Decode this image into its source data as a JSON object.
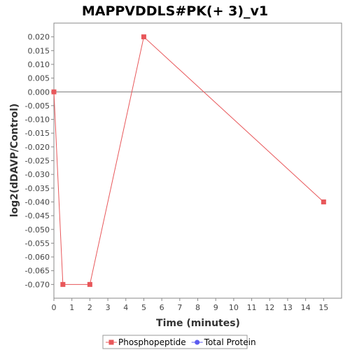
{
  "chart_data": {
    "type": "line",
    "title": "MAPPVDDLS#PK(+ 3)_v1",
    "xlabel": "Time (minutes)",
    "ylabel": "log2(dDAVP/Control)",
    "xlim": [
      0,
      16
    ],
    "ylim": [
      -0.075,
      0.025
    ],
    "x_ticks": [
      0,
      1,
      2,
      3,
      4,
      5,
      6,
      7,
      8,
      9,
      10,
      11,
      12,
      13,
      14,
      15
    ],
    "y_ticks": [
      0.02,
      0.015,
      0.01,
      0.005,
      0.0,
      -0.005,
      -0.01,
      -0.015,
      -0.02,
      -0.025,
      -0.03,
      -0.035,
      -0.04,
      -0.045,
      -0.05,
      -0.055,
      -0.06,
      -0.065,
      -0.07
    ],
    "y_tick_labels": [
      "0.020",
      "0.015",
      "0.010",
      "0.005",
      "0.000",
      "-0.005",
      "-0.010",
      "-0.015",
      "-0.020",
      "-0.025",
      "-0.030",
      "-0.035",
      "-0.040",
      "-0.045",
      "-0.050",
      "-0.055",
      "-0.060",
      "-0.065",
      "-0.070"
    ],
    "zero_line": true,
    "grid": false,
    "legend_position": "bottom",
    "series": [
      {
        "name": "Phosphopeptide",
        "color": "#e8575a",
        "marker": "square",
        "x": [
          0,
          0.5,
          2,
          5,
          15
        ],
        "y": [
          0.0,
          -0.07,
          -0.07,
          0.02,
          -0.04
        ]
      },
      {
        "name": "Total Protein",
        "color": "#5b5bf0",
        "marker": "circle",
        "x": [],
        "y": []
      }
    ]
  }
}
